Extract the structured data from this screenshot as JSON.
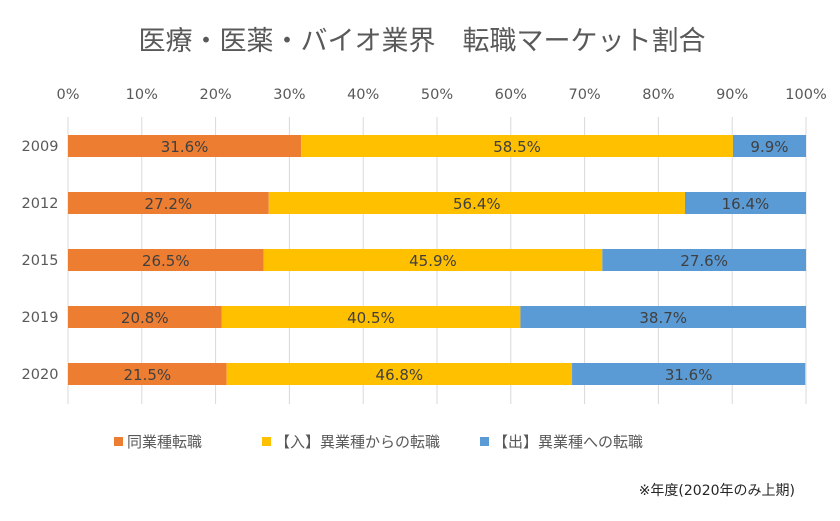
{
  "chart_data": {
    "type": "bar",
    "orientation": "horizontal",
    "stacked": "100%",
    "title": "医療・医薬・バイオ業界　転職マーケット割合",
    "categories": [
      "2009",
      "2012",
      "2015",
      "2019",
      "2020"
    ],
    "series": [
      {
        "name": "同業種転職",
        "color": "#ED7D31",
        "values": [
          31.6,
          27.2,
          26.5,
          20.8,
          21.5
        ],
        "labels": [
          "31.6%",
          "27.2%",
          "26.5%",
          "20.8%",
          "21.5%"
        ]
      },
      {
        "name": "【入】異業種からの転職",
        "color": "#FFC000",
        "values": [
          58.5,
          56.4,
          45.9,
          40.5,
          46.8
        ],
        "labels": [
          "58.5%",
          "56.4%",
          "45.9%",
          "40.5%",
          "46.8%"
        ]
      },
      {
        "name": "【出】異業種への転職",
        "color": "#5B9BD5",
        "values": [
          9.9,
          16.4,
          27.6,
          38.7,
          31.6
        ],
        "labels": [
          "9.9%",
          "16.4%",
          "27.6%",
          "38.7%",
          "31.6%"
        ]
      }
    ],
    "xaxis": {
      "ticks": [
        "0%",
        "10%",
        "20%",
        "30%",
        "40%",
        "50%",
        "60%",
        "70%",
        "80%",
        "90%",
        "100%"
      ],
      "range": [
        0,
        100
      ],
      "position": "top"
    },
    "grid": true,
    "legend": "bottom",
    "note": "※年度(2020年のみ上期)"
  }
}
